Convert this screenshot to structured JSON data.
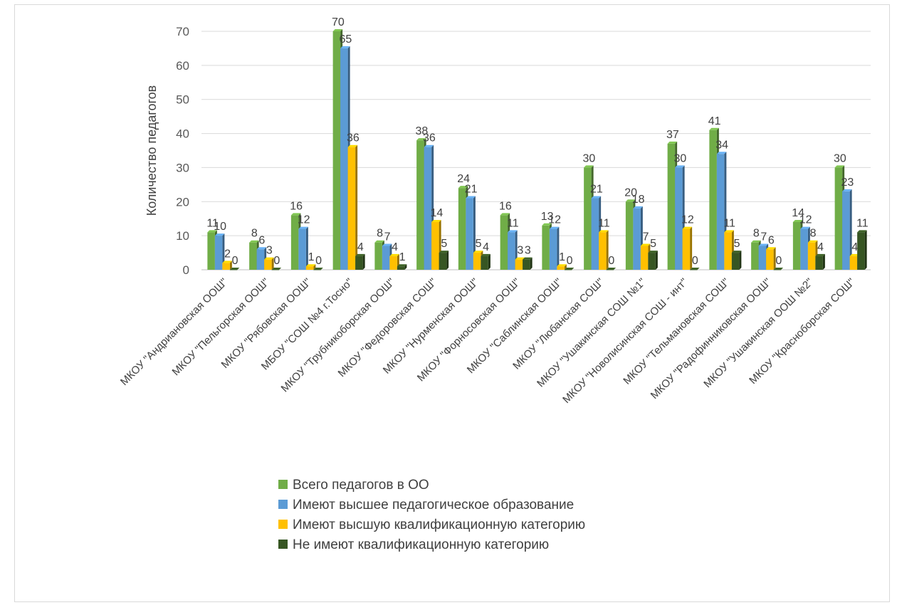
{
  "chart_data": {
    "type": "bar",
    "title": "",
    "xlabel": "",
    "ylabel": "Количество педагогов",
    "ylim": [
      0,
      70
    ],
    "yticks": [
      0,
      10,
      20,
      30,
      40,
      50,
      60,
      70
    ],
    "grid": true,
    "legend_position": "bottom",
    "categories": [
      "МКОУ \"Андриановская ООШ\"",
      "МКОУ \"Пельгорская ООШ\"",
      "МКОУ \"Рябовская ООШ\"",
      "МБОУ \"СОШ №4 г.Тосно\"",
      "МКОУ \"Трубникоборская ООШ\"",
      "МКОУ \"Федоровская СОШ\"",
      "МКОУ \"Нурменская ООШ\"",
      "МКОУ \"Форносовская ООШ\"",
      "МКОУ \"Саблинская ООШ\"",
      "МКОУ \"Любанская СОШ\"",
      "МКОУ \"Ушакинская СОШ №1\"",
      "МКОУ \"Новолисинская СОШ - инт\"",
      "МКОУ \"Тельмановская СОШ\"",
      "МКОУ \"Радофинниковская ООШ\"",
      "МКОУ \"Ушакинская ООШ №2\"",
      "МКОУ \"Красноборская СОШ\""
    ],
    "series": [
      {
        "name": "Всего педагогов в ОО",
        "color": "#70ad47",
        "values": [
          11,
          8,
          16,
          70,
          8,
          38,
          24,
          16,
          13,
          30,
          20,
          37,
          41,
          8,
          14,
          30
        ]
      },
      {
        "name": "Имеют высшее педагогическое образование",
        "color": "#5b9bd5",
        "values": [
          10,
          6,
          12,
          65,
          7,
          36,
          21,
          11,
          12,
          21,
          18,
          30,
          34,
          7,
          12,
          23
        ]
      },
      {
        "name": "Имеют высшую квалификационную категорию",
        "color": "#ffc000",
        "values": [
          2,
          3,
          1,
          36,
          4,
          14,
          5,
          3,
          1,
          11,
          7,
          12,
          11,
          6,
          8,
          4
        ]
      },
      {
        "name": "Не имеют квалификационную категорию",
        "color": "#375623",
        "values": [
          0,
          0,
          0,
          4,
          1,
          5,
          4,
          3,
          0,
          0,
          5,
          0,
          5,
          0,
          4,
          11
        ]
      }
    ]
  }
}
